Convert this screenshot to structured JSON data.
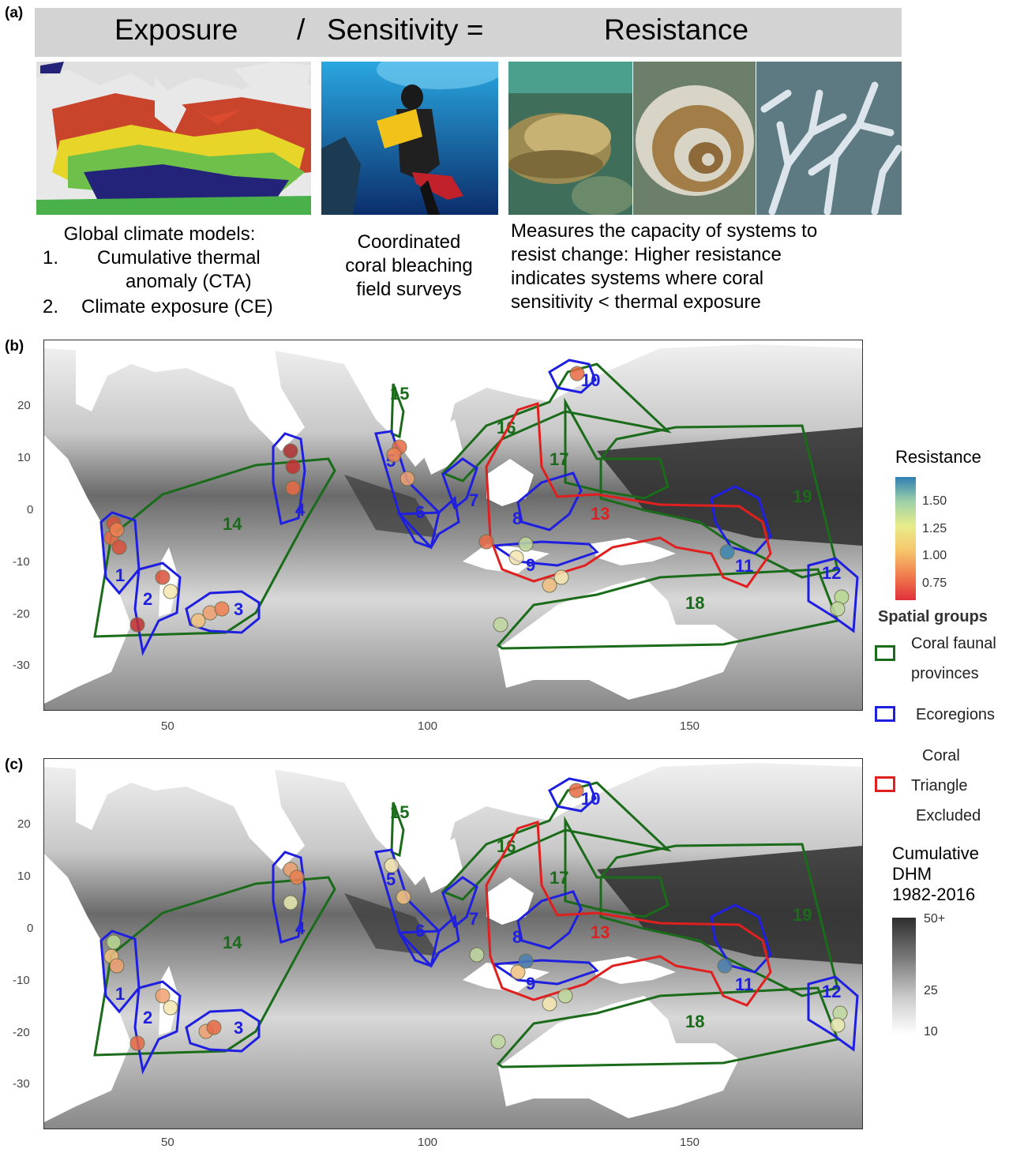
{
  "panel_a": {
    "label": "(a)",
    "equation": {
      "exposure": "Exposure",
      "slash": "/",
      "sensitivity": "Sensitivity =",
      "resistance": "Resistance"
    },
    "caption_left": {
      "title": "Global climate models:",
      "item1_num": "1.",
      "item1": "Cumulative thermal",
      "item1b": "anomaly (CTA)",
      "item2_num": "2.",
      "item2": "Climate exposure (CE)"
    },
    "caption_mid": [
      "Coordinated",
      "coral bleaching",
      "field surveys"
    ],
    "caption_right": [
      "Measures the capacity of systems to",
      "resist change: Higher resistance",
      "indicates systems where coral",
      "sensitivity < thermal exposure"
    ]
  },
  "panel_b": {
    "label": "(b)"
  },
  "panel_c": {
    "label": "(c)"
  },
  "axes": {
    "x_ticks": [
      "50",
      "100",
      "150"
    ],
    "y_ticks": [
      "20",
      "10",
      "0",
      "-10",
      "-20",
      "-30"
    ]
  },
  "region_labels": {
    "blue": [
      "1",
      "2",
      "3",
      "4",
      "5",
      "6",
      "7",
      "8",
      "9",
      "10",
      "11",
      "12"
    ],
    "green": [
      "14",
      "15",
      "16",
      "17",
      "18",
      "19"
    ],
    "red": [
      "13"
    ]
  },
  "legend": {
    "resistance_title": "Resistance",
    "resistance_ticks": [
      "1.50",
      "1.25",
      "1.00",
      "0.75"
    ],
    "spatial_title": "Spatial groups",
    "faunal": [
      "Coral faunal",
      "provinces"
    ],
    "ecoregions": "Ecoregions",
    "triangle": [
      "Coral",
      "Triangle",
      "Excluded"
    ],
    "dhm_title": [
      "Cumulative",
      "DHM",
      "1982-2016"
    ],
    "dhm_ticks": [
      "50+",
      "25",
      "10"
    ]
  },
  "colors": {
    "faunal": "#1a6b1a",
    "ecoregion": "#1f1fe0",
    "triangle": "#e01f1f",
    "equation_bar": "#d3d3d3"
  }
}
